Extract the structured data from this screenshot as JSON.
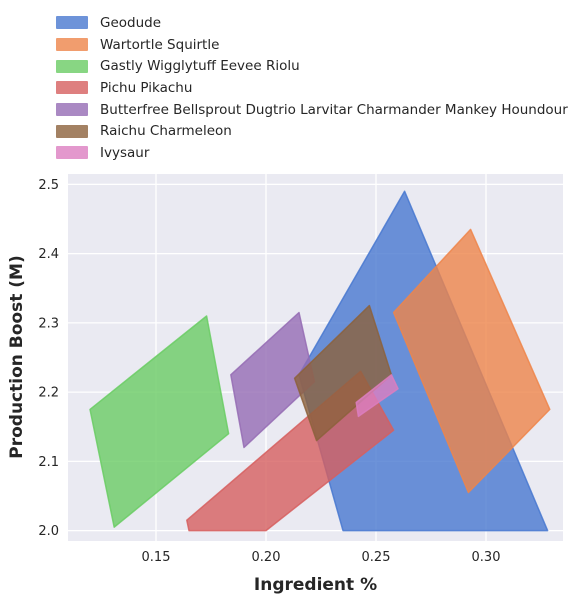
{
  "chart_data": {
    "type": "area",
    "xlabel": "Ingredient %",
    "ylabel": "Production Boost (M)",
    "xlim": [
      0.11,
      0.335
    ],
    "ylim": [
      1.985,
      2.515
    ],
    "xticks": [
      0.15,
      0.2,
      0.25,
      0.3
    ],
    "xtick_labels": [
      "0.15",
      "0.20",
      "0.25",
      "0.30"
    ],
    "yticks": [
      2.0,
      2.1,
      2.2,
      2.3,
      2.4,
      2.5
    ],
    "ytick_labels": [
      "2.0",
      "2.1",
      "2.2",
      "2.3",
      "2.4",
      "2.5"
    ],
    "grid": true,
    "legend_position": "top-left",
    "series": [
      {
        "name": "Geodude",
        "color": "#4878d0",
        "points": [
          [
            0.215,
            2.225
          ],
          [
            0.263,
            2.49
          ],
          [
            0.328,
            2.0
          ],
          [
            0.235,
            2.0
          ]
        ]
      },
      {
        "name": "Wartortle Squirtle",
        "color": "#ee854a",
        "points": [
          [
            0.258,
            2.315
          ],
          [
            0.293,
            2.435
          ],
          [
            0.329,
            2.175
          ],
          [
            0.292,
            2.055
          ]
        ]
      },
      {
        "name": "Gastly Wigglytuff Eevee Riolu",
        "color": "#6acc64",
        "points": [
          [
            0.12,
            2.175
          ],
          [
            0.173,
            2.31
          ],
          [
            0.183,
            2.14
          ],
          [
            0.131,
            2.005
          ]
        ]
      },
      {
        "name": "Pichu Pikachu",
        "color": "#d65f5f",
        "points": [
          [
            0.164,
            2.015
          ],
          [
            0.243,
            2.23
          ],
          [
            0.258,
            2.145
          ],
          [
            0.2,
            2.0
          ],
          [
            0.165,
            2.0
          ]
        ]
      },
      {
        "name": "Butterfree Bellsprout Dugtrio Larvitar Charmander Mankey Houndour",
        "color": "#956cb4",
        "points": [
          [
            0.184,
            2.225
          ],
          [
            0.215,
            2.315
          ],
          [
            0.222,
            2.215
          ],
          [
            0.19,
            2.12
          ]
        ]
      },
      {
        "name": "Raichu Charmeleon",
        "color": "#8c613c",
        "points": [
          [
            0.213,
            2.22
          ],
          [
            0.247,
            2.325
          ],
          [
            0.257,
            2.225
          ],
          [
            0.223,
            2.13
          ]
        ]
      },
      {
        "name": "Ivysaur",
        "color": "#dc7ec0",
        "points": [
          [
            0.241,
            2.185
          ],
          [
            0.257,
            2.225
          ],
          [
            0.26,
            2.205
          ],
          [
            0.242,
            2.165
          ]
        ]
      }
    ]
  }
}
